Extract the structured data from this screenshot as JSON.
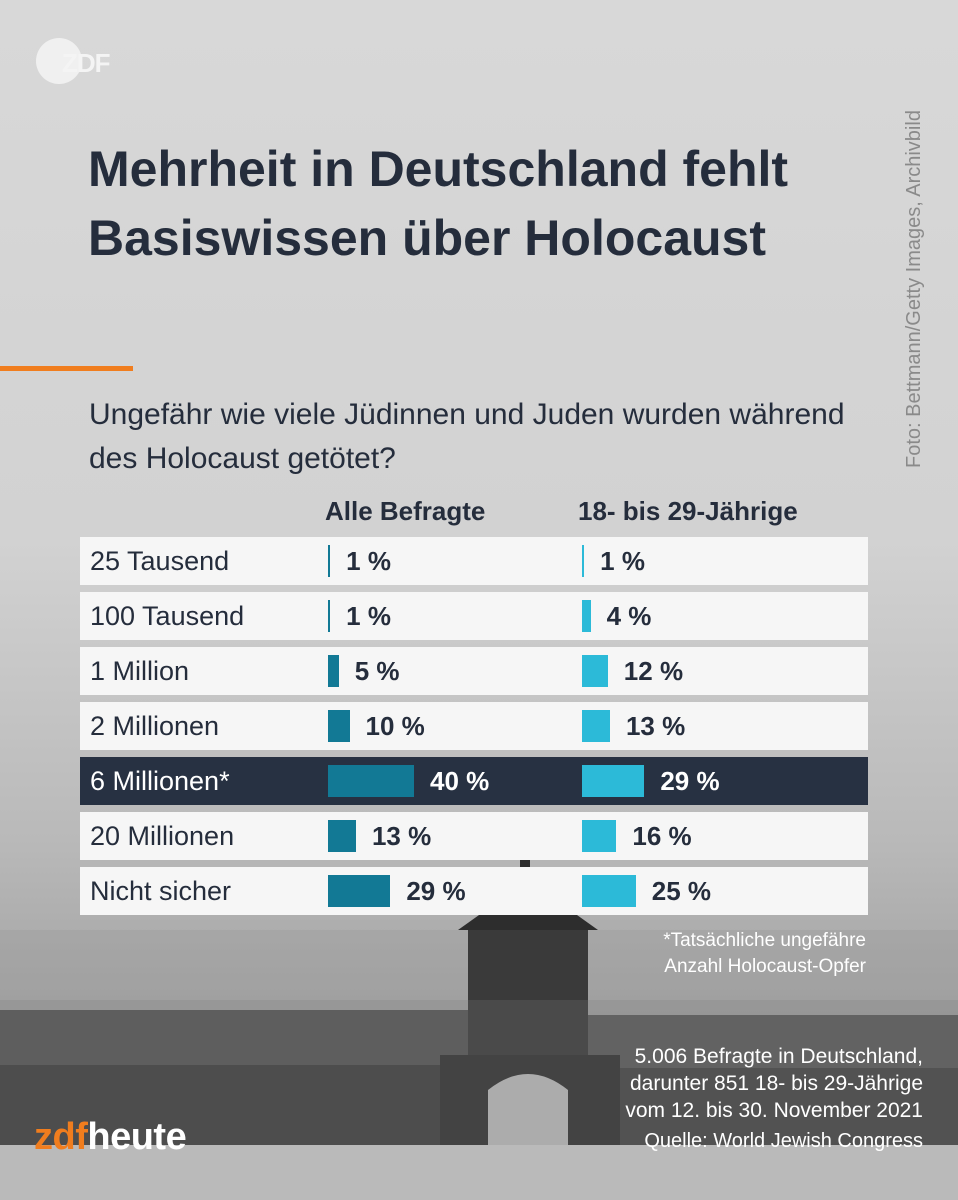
{
  "header": {
    "logo": "ZDF",
    "title": "Mehrheit in Deutschland fehlt Basiswissen über Holocaust",
    "question": "Ungefähr wie viele Jüdinnen und Juden wurden während des Holocaust getötet?",
    "credit": "Foto: Bettmann/Getty Images, Archivbild"
  },
  "colors": {
    "accent": "#f07d1e",
    "title": "#252d3c",
    "all_bar": "#127995",
    "young_bar": "#2cbad8",
    "highlight_row": "#273142"
  },
  "chart_data": {
    "type": "bar",
    "orientation": "horizontal",
    "categories": [
      "25 Tausend",
      "100 Tausend",
      "1 Million",
      "2 Millionen",
      "6 Millionen*",
      "20 Millionen",
      "Nicht sicher"
    ],
    "series": [
      {
        "name": "Alle Befragte",
        "values": [
          1,
          1,
          5,
          10,
          40,
          13,
          29
        ]
      },
      {
        "name": "18- bis 29-Jährige",
        "values": [
          1,
          4,
          12,
          13,
          29,
          16,
          25
        ]
      }
    ],
    "unit": "%",
    "highlight_index": 4,
    "xlim": [
      0,
      100
    ]
  },
  "footer": {
    "footnote_1": "*Tatsächliche ungefähre",
    "footnote_2": "Anzahl Holocaust-Opfer",
    "method_1": "5.006 Befragte in Deutschland,",
    "method_2": "darunter 851 18- bis 29-Jährige",
    "method_3": "vom 12. bis 30. November 2021",
    "source": "Quelle: World Jewish Congress",
    "brand_zdf": "zdf",
    "brand_heute": "heute"
  }
}
